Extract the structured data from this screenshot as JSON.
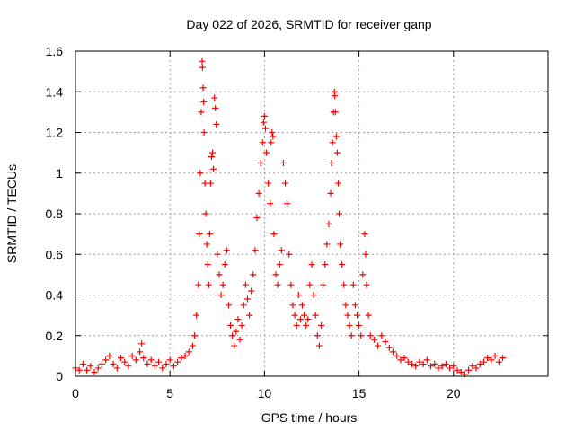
{
  "chart_data": {
    "type": "scatter",
    "title": "Day 022 of 2026, SRMTID for receiver ganp",
    "xlabel": "GPS time / hours",
    "ylabel": "SRMTID / TECUs",
    "xlim": [
      0,
      25
    ],
    "ylim": [
      0,
      1.6
    ],
    "xticks": [
      0,
      5,
      10,
      15,
      20
    ],
    "xtick_labels": [
      "0",
      "5",
      "10",
      "15",
      "20"
    ],
    "yticks": [
      0,
      0.2,
      0.4,
      0.6,
      0.8,
      1,
      1.2,
      1.4,
      1.6
    ],
    "ytick_labels": [
      "0",
      "0.2",
      "0.4",
      "0.6",
      "0.8",
      "1",
      "1.2",
      "1.4",
      "1.6"
    ],
    "grid": true,
    "marker": "+",
    "color": "#ff0000",
    "series": [
      {
        "name": "SRMTID",
        "points": [
          [
            0.0,
            0.04
          ],
          [
            0.2,
            0.03
          ],
          [
            0.4,
            0.06
          ],
          [
            0.6,
            0.03
          ],
          [
            0.8,
            0.05
          ],
          [
            1.0,
            0.02
          ],
          [
            1.2,
            0.04
          ],
          [
            1.4,
            0.06
          ],
          [
            1.6,
            0.08
          ],
          [
            1.8,
            0.1
          ],
          [
            2.0,
            0.06
          ],
          [
            2.2,
            0.04
          ],
          [
            2.4,
            0.09
          ],
          [
            2.6,
            0.07
          ],
          [
            2.8,
            0.05
          ],
          [
            3.0,
            0.1
          ],
          [
            3.2,
            0.08
          ],
          [
            3.4,
            0.12
          ],
          [
            3.5,
            0.16
          ],
          [
            3.6,
            0.09
          ],
          [
            3.8,
            0.06
          ],
          [
            4.0,
            0.08
          ],
          [
            4.2,
            0.05
          ],
          [
            4.4,
            0.07
          ],
          [
            4.6,
            0.04
          ],
          [
            4.8,
            0.06
          ],
          [
            5.0,
            0.08
          ],
          [
            5.2,
            0.05
          ],
          [
            5.4,
            0.07
          ],
          [
            5.6,
            0.09
          ],
          [
            5.8,
            0.1
          ],
          [
            6.0,
            0.12
          ],
          [
            6.2,
            0.15
          ],
          [
            6.3,
            0.2
          ],
          [
            6.4,
            0.3
          ],
          [
            6.5,
            0.45
          ],
          [
            6.55,
            0.7
          ],
          [
            6.6,
            1.0
          ],
          [
            6.65,
            1.3
          ],
          [
            6.7,
            1.55
          ],
          [
            6.72,
            1.52
          ],
          [
            6.75,
            1.42
          ],
          [
            6.78,
            1.35
          ],
          [
            6.8,
            1.2
          ],
          [
            6.85,
            0.95
          ],
          [
            6.9,
            0.8
          ],
          [
            6.95,
            0.65
          ],
          [
            7.0,
            0.55
          ],
          [
            7.05,
            0.45
          ],
          [
            7.1,
            0.7
          ],
          [
            7.15,
            0.95
          ],
          [
            7.2,
            1.08
          ],
          [
            7.25,
            1.1
          ],
          [
            7.3,
            1.02
          ],
          [
            7.35,
            1.37
          ],
          [
            7.4,
            1.32
          ],
          [
            7.45,
            1.24
          ],
          [
            7.5,
            0.6
          ],
          [
            7.6,
            0.5
          ],
          [
            7.7,
            0.4
          ],
          [
            7.8,
            0.45
          ],
          [
            7.9,
            0.55
          ],
          [
            8.0,
            0.62
          ],
          [
            8.1,
            0.35
          ],
          [
            8.2,
            0.25
          ],
          [
            8.3,
            0.2
          ],
          [
            8.4,
            0.15
          ],
          [
            8.5,
            0.22
          ],
          [
            8.6,
            0.28
          ],
          [
            8.7,
            0.18
          ],
          [
            8.8,
            0.25
          ],
          [
            8.9,
            0.35
          ],
          [
            9.0,
            0.45
          ],
          [
            9.1,
            0.38
          ],
          [
            9.2,
            0.3
          ],
          [
            9.3,
            0.42
          ],
          [
            9.4,
            0.5
          ],
          [
            9.5,
            0.62
          ],
          [
            9.6,
            0.78
          ],
          [
            9.7,
            0.9
          ],
          [
            9.8,
            1.05
          ],
          [
            9.9,
            1.15
          ],
          [
            9.95,
            1.25
          ],
          [
            10.0,
            1.28
          ],
          [
            10.05,
            1.22
          ],
          [
            10.1,
            1.1
          ],
          [
            10.2,
            0.95
          ],
          [
            10.3,
            0.85
          ],
          [
            10.35,
            1.15
          ],
          [
            10.4,
            1.2
          ],
          [
            10.45,
            1.18
          ],
          [
            10.5,
            0.7
          ],
          [
            10.6,
            0.5
          ],
          [
            10.7,
            0.45
          ],
          [
            10.8,
            0.55
          ],
          [
            10.9,
            0.62
          ],
          [
            11.0,
            1.05
          ],
          [
            11.1,
            0.95
          ],
          [
            11.2,
            0.85
          ],
          [
            11.3,
            0.6
          ],
          [
            11.4,
            0.45
          ],
          [
            11.5,
            0.35
          ],
          [
            11.6,
            0.3
          ],
          [
            11.7,
            0.25
          ],
          [
            11.8,
            0.4
          ],
          [
            11.9,
            0.28
          ],
          [
            12.0,
            0.35
          ],
          [
            12.1,
            0.3
          ],
          [
            12.2,
            0.25
          ],
          [
            12.3,
            0.28
          ],
          [
            12.4,
            0.45
          ],
          [
            12.5,
            0.55
          ],
          [
            12.6,
            0.4
          ],
          [
            12.7,
            0.3
          ],
          [
            12.8,
            0.2
          ],
          [
            12.9,
            0.15
          ],
          [
            13.0,
            0.25
          ],
          [
            13.1,
            0.45
          ],
          [
            13.2,
            0.55
          ],
          [
            13.3,
            0.65
          ],
          [
            13.4,
            0.75
          ],
          [
            13.5,
            0.9
          ],
          [
            13.55,
            1.05
          ],
          [
            13.6,
            1.15
          ],
          [
            13.65,
            1.3
          ],
          [
            13.7,
            1.4
          ],
          [
            13.72,
            1.38
          ],
          [
            13.75,
            1.3
          ],
          [
            13.8,
            1.18
          ],
          [
            13.85,
            1.1
          ],
          [
            13.9,
            0.95
          ],
          [
            13.95,
            0.8
          ],
          [
            14.0,
            0.65
          ],
          [
            14.1,
            0.55
          ],
          [
            14.2,
            0.45
          ],
          [
            14.3,
            0.35
          ],
          [
            14.4,
            0.3
          ],
          [
            14.5,
            0.25
          ],
          [
            14.6,
            0.2
          ],
          [
            14.7,
            0.45
          ],
          [
            14.8,
            0.35
          ],
          [
            14.9,
            0.3
          ],
          [
            15.0,
            0.25
          ],
          [
            15.1,
            0.2
          ],
          [
            15.2,
            0.5
          ],
          [
            15.3,
            0.7
          ],
          [
            15.35,
            0.6
          ],
          [
            15.4,
            0.45
          ],
          [
            15.5,
            0.3
          ],
          [
            15.6,
            0.2
          ],
          [
            15.8,
            0.18
          ],
          [
            16.0,
            0.15
          ],
          [
            16.2,
            0.2
          ],
          [
            16.4,
            0.17
          ],
          [
            16.6,
            0.14
          ],
          [
            16.8,
            0.12
          ],
          [
            17.0,
            0.1
          ],
          [
            17.2,
            0.08
          ],
          [
            17.4,
            0.09
          ],
          [
            17.6,
            0.07
          ],
          [
            17.8,
            0.06
          ],
          [
            18.0,
            0.05
          ],
          [
            18.2,
            0.07
          ],
          [
            18.4,
            0.06
          ],
          [
            18.6,
            0.08
          ],
          [
            18.8,
            0.05
          ],
          [
            19.0,
            0.06
          ],
          [
            19.2,
            0.04
          ],
          [
            19.4,
            0.05
          ],
          [
            19.6,
            0.06
          ],
          [
            19.8,
            0.04
          ],
          [
            20.0,
            0.05
          ],
          [
            20.2,
            0.03
          ],
          [
            20.4,
            0.02
          ],
          [
            20.6,
            0.01
          ],
          [
            20.8,
            0.03
          ],
          [
            21.0,
            0.05
          ],
          [
            21.2,
            0.04
          ],
          [
            21.4,
            0.06
          ],
          [
            21.6,
            0.07
          ],
          [
            21.8,
            0.09
          ],
          [
            22.0,
            0.08
          ],
          [
            22.2,
            0.1
          ],
          [
            22.4,
            0.07
          ],
          [
            22.6,
            0.09
          ]
        ]
      }
    ]
  }
}
